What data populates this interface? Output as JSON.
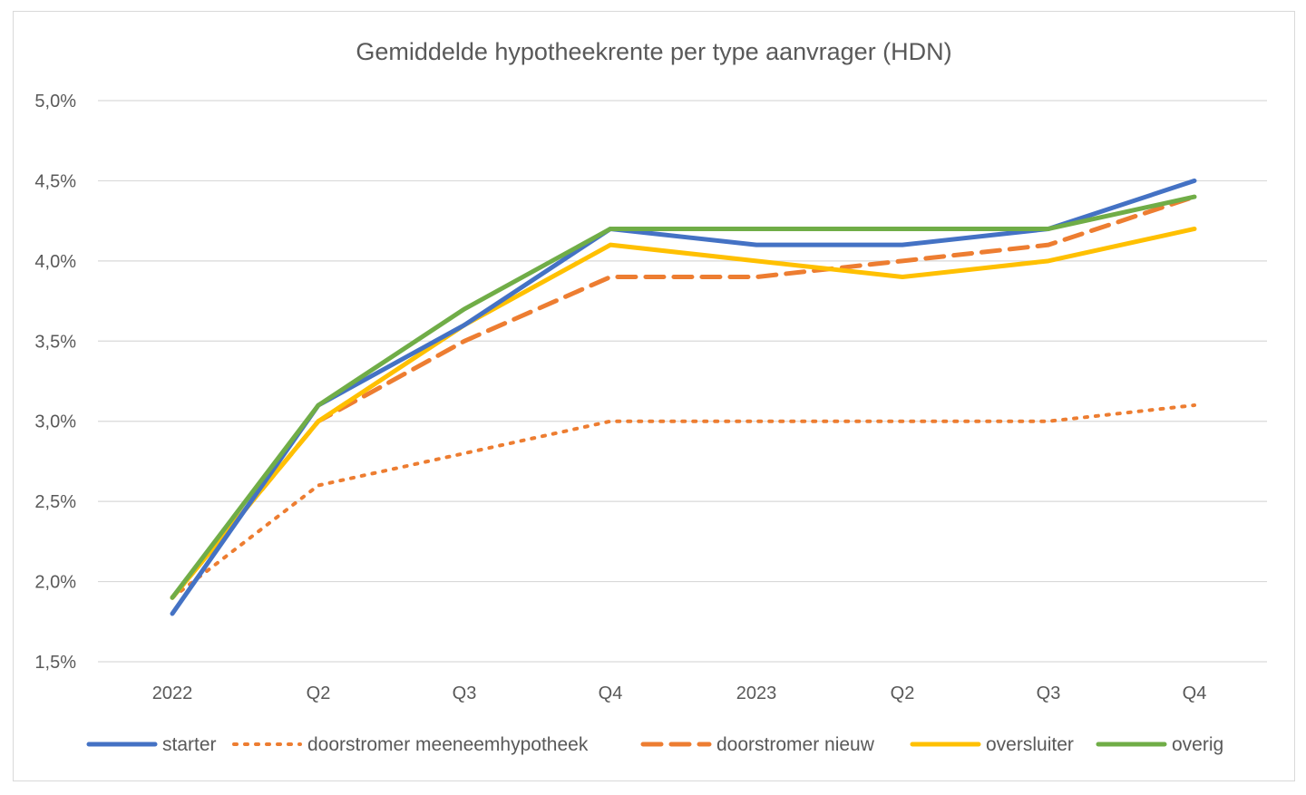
{
  "chart_data": {
    "type": "line",
    "title": "Gemiddelde hypotheekrente per type aanvrager (HDN)",
    "xlabel": "",
    "ylabel": "",
    "categories": [
      "2022",
      "Q2",
      "Q3",
      "Q4",
      "2023",
      "Q2",
      "Q3",
      "Q4"
    ],
    "y_ticks": [
      "1,5%",
      "2,0%",
      "2,5%",
      "3,0%",
      "3,5%",
      "4,0%",
      "4,5%",
      "5,0%"
    ],
    "ylim": [
      1.5,
      5.0
    ],
    "grid": true,
    "legend_position": "bottom",
    "series": [
      {
        "name": "starter",
        "color": "#4472C4",
        "style": "solid",
        "values": [
          1.8,
          3.1,
          3.6,
          4.2,
          4.1,
          4.1,
          4.2,
          4.5
        ]
      },
      {
        "name": "doorstromer meeneemhypotheek",
        "color": "#ED7D31",
        "style": "dotted",
        "values": [
          1.9,
          2.6,
          2.8,
          3.0,
          3.0,
          3.0,
          3.0,
          3.1
        ]
      },
      {
        "name": "doorstromer nieuw",
        "color": "#ED7D31",
        "style": "dashed",
        "values": [
          1.9,
          3.0,
          3.5,
          3.9,
          3.9,
          4.0,
          4.1,
          4.4
        ]
      },
      {
        "name": "oversluiter",
        "color": "#FFC000",
        "style": "solid",
        "values": [
          1.9,
          3.0,
          3.6,
          4.1,
          4.0,
          3.9,
          4.0,
          4.2
        ]
      },
      {
        "name": "overig",
        "color": "#70AD47",
        "style": "solid",
        "values": [
          1.9,
          3.1,
          3.7,
          4.2,
          4.2,
          4.2,
          4.2,
          4.4
        ]
      }
    ]
  }
}
